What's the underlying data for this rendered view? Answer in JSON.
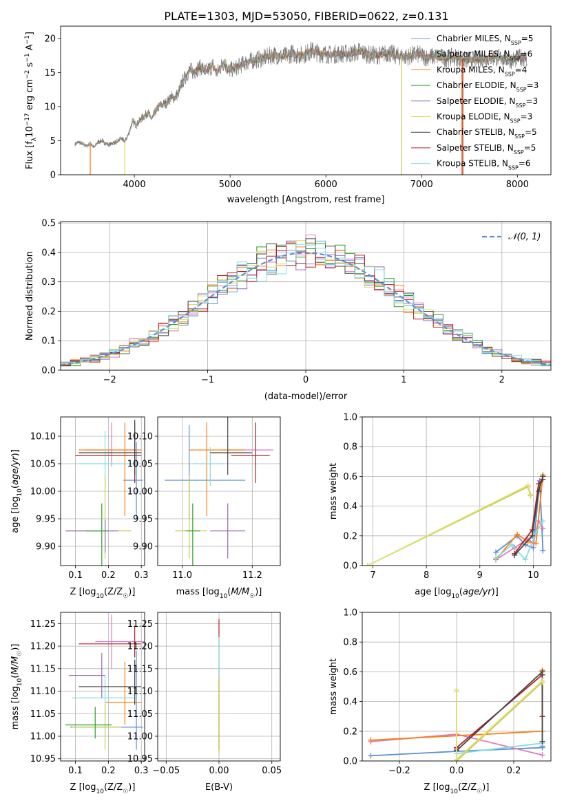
{
  "figure_title": "PLATE=1303, MJD=53050, FIBERID=0622, z=0.131",
  "chart_data": [
    {
      "id": "spectrum",
      "type": "line",
      "title": "PLATE=1303, MJD=53050, FIBERID=0622, z=0.131",
      "xlabel": "wavelength [Angstrom, rest frame]",
      "ylabel": "Flux [f_λ 10^-17 erg cm^-2 s^-1 A^-1]",
      "xlim": [
        3230,
        8350
      ],
      "ylim": [
        0,
        21.8
      ],
      "xticks": [
        4000,
        5000,
        6000,
        7000,
        8000
      ],
      "yticks": [
        0,
        5,
        10,
        15,
        20
      ],
      "grid": false,
      "legend_position": "upper right",
      "data_flux": {
        "x": [
          3380,
          3420,
          3460,
          3500,
          3540,
          3580,
          3620,
          3660,
          3700,
          3740,
          3780,
          3820,
          3860,
          3900,
          3940,
          3980,
          4020,
          4060,
          4100,
          4140,
          4180,
          4220,
          4260,
          4300,
          4340,
          4380,
          4420,
          4460,
          4500,
          4540,
          4580,
          4620,
          4660,
          4700,
          4740,
          4780,
          4820,
          4860,
          4900,
          4940,
          4980,
          5050,
          5150,
          5250,
          5350,
          5450,
          5550,
          5650,
          5750,
          5850,
          5950,
          6050,
          6150,
          6250,
          6350,
          6450,
          6550,
          6650,
          6750,
          6850,
          6950,
          7050,
          7150,
          7250,
          7350,
          7450,
          7550,
          7650,
          7750,
          7850,
          7950,
          8050,
          8100
        ],
        "y": [
          4.5,
          4.8,
          4.5,
          4.2,
          4.6,
          4.0,
          4.8,
          5.0,
          4.6,
          4.4,
          4.7,
          4.8,
          5.4,
          4.8,
          6.0,
          7.8,
          7.3,
          8.0,
          8.6,
          9.1,
          8.2,
          9.2,
          10.1,
          10.3,
          10.6,
          11.4,
          11.3,
          12.0,
          13.6,
          14.5,
          15.4,
          15.0,
          15.6,
          15.8,
          15.1,
          15.5,
          16.0,
          14.9,
          15.8,
          16.6,
          15.3,
          15.6,
          16.4,
          16.8,
          17.1,
          17.6,
          17.3,
          17.8,
          17.5,
          18.2,
          17.8,
          17.6,
          17.8,
          17.7,
          18.1,
          17.6,
          17.5,
          17.9,
          17.4,
          17.3,
          17.7,
          17.2,
          17.4,
          17.1,
          17.3,
          16.8,
          16.9,
          17.0,
          17.2,
          17.1,
          16.8,
          17.3,
          17.0
        ]
      },
      "series": [
        {
          "name": "Chabrier MILES, N_SSP=5",
          "color": "#5e9ed6"
        },
        {
          "name": "Salpeter MILES, N_SSP=6",
          "color": "#e377c2"
        },
        {
          "name": "Kroupa MILES, N_SSP=4",
          "color": "#ff7f0e"
        },
        {
          "name": "Chabrier ELODIE, N_SSP=3",
          "color": "#2ca02c"
        },
        {
          "name": "Salpeter ELODIE, N_SSP=3",
          "color": "#9467bd"
        },
        {
          "name": "Kroupa ELODIE, N_SSP=3",
          "color": "#dbdb5a"
        },
        {
          "name": "Chabrier STELIB, N_SSP=5",
          "color": "#444444"
        },
        {
          "name": "Salpeter STELIB, N_SSP=5",
          "color": "#b22222"
        },
        {
          "name": "Kroupa STELIB, N_SSP=6",
          "color": "#7fdfe0"
        }
      ],
      "legend_entries": [
        {
          "name": "Chabrier MILES, N",
          "sub": "SSP",
          "tail": "=5"
        },
        {
          "name": "Salpeter MILES, N",
          "sub": "SSP",
          "tail": "=6"
        },
        {
          "name": "Kroupa MILES, N",
          "sub": "SSP",
          "tail": "=4"
        },
        {
          "name": "Chabrier ELODIE, N",
          "sub": "SSP",
          "tail": "=3"
        },
        {
          "name": "Salpeter ELODIE, N",
          "sub": "SSP",
          "tail": "=3"
        },
        {
          "name": "Kroupa ELODIE, N",
          "sub": "SSP",
          "tail": "=3"
        },
        {
          "name": "Chabrier STELIB, N",
          "sub": "SSP",
          "tail": "=5"
        },
        {
          "name": "Salpeter STELIB, N",
          "sub": "SSP",
          "tail": "=5"
        },
        {
          "name": "Kroupa STELIB, N",
          "sub": "SSP",
          "tail": "=6"
        }
      ]
    },
    {
      "id": "residuals",
      "type": "line",
      "xlabel": "(data-model)/error",
      "ylabel": "Normed distribution",
      "xlim": [
        -2.5,
        2.5
      ],
      "ylim": [
        0,
        0.505
      ],
      "xticks": [
        -2,
        -1,
        0,
        1,
        2
      ],
      "yticks": [
        0.0,
        0.1,
        0.2,
        0.3,
        0.4,
        0.5
      ],
      "grid": true,
      "legend_position": "upper right",
      "legend_label": "𝒩(0, 1)",
      "gaussian": {
        "mean": 0,
        "sigma": 1,
        "color": "#5b8fd6"
      },
      "bin_width": 0.1,
      "series_colors": [
        "#5e9ed6",
        "#e377c2",
        "#ff7f0e",
        "#2ca02c",
        "#9467bd",
        "#dbdb5a",
        "#444444",
        "#b22222",
        "#7fdfe0"
      ]
    },
    {
      "id": "age_vs_z",
      "type": "scatter",
      "xlabel": "Z [log10(Z/Z☉)]",
      "ylabel": "age [log10(age/yr)]",
      "xlim": [
        0.055,
        0.31
      ],
      "ylim": [
        9.865,
        10.135
      ],
      "xticks": [
        0.1,
        0.2,
        0.3
      ],
      "yticks": [
        9.9,
        9.95,
        10.0,
        10.05,
        10.1
      ],
      "grid": true,
      "points": [
        {
          "x": 0.285,
          "y": 10.02,
          "xerr": [
            0.04,
            0.02
          ],
          "yerr": [
            0.07,
            0.07
          ],
          "color": "#5b8fd6"
        },
        {
          "x": 0.21,
          "y": 10.075,
          "xerr": [
            0.08,
            0.08
          ],
          "yerr": [
            0.03,
            0.05
          ],
          "color": "#e377c2"
        },
        {
          "x": 0.25,
          "y": 10.075,
          "xerr": [
            0.14,
            0.05
          ],
          "yerr": [
            0.12,
            0.05
          ],
          "color": "#ff7f0e"
        },
        {
          "x": 0.19,
          "y": 10.05,
          "xerr": [
            0.08,
            0.09
          ],
          "yerr": [
            0.04,
            0.06
          ],
          "color": "#7fdfe0"
        },
        {
          "x": 0.28,
          "y": 10.065,
          "xerr": [
            0.18,
            0.02
          ],
          "yerr": [
            0.05,
            0.06
          ],
          "color": "#b22222"
        },
        {
          "x": 0.28,
          "y": 10.07,
          "xerr": [
            0.17,
            0.02
          ],
          "yerr": [
            0.04,
            0.06
          ],
          "color": "#444444"
        },
        {
          "x": 0.19,
          "y": 9.928,
          "xerr": [
            0.12,
            0.08
          ],
          "yerr": [
            0.05,
            0.1
          ],
          "color": "#c9c94a"
        },
        {
          "x": 0.19,
          "y": 9.928,
          "xerr": [
            0.12,
            0.04
          ],
          "yerr": [
            0.04,
            0.02
          ],
          "color": "#9467bd"
        },
        {
          "x": 0.18,
          "y": 9.928,
          "xerr": [
            0.05,
            0.02
          ],
          "yerr": [
            0.1,
            0.05
          ],
          "color": "#2ca02c"
        }
      ]
    },
    {
      "id": "age_vs_mass",
      "type": "scatter",
      "xlabel": "mass [log10(M/M☉)]",
      "ylabel": "",
      "xlim": [
        10.93,
        11.28
      ],
      "ylim": [
        9.865,
        10.135
      ],
      "xticks": [
        11.0,
        11.2
      ],
      "yticks": [
        9.9,
        9.95,
        10.0,
        10.05,
        10.1
      ],
      "grid": true,
      "points": [
        {
          "x": 11.02,
          "y": 10.02,
          "xerr": [
            0.07,
            0.16
          ],
          "yerr": [
            0.07,
            0.1
          ],
          "color": "#5b8fd6"
        },
        {
          "x": 11.21,
          "y": 10.075,
          "xerr": [
            0.1,
            0.05
          ],
          "yerr": [
            0.03,
            0.05
          ],
          "color": "#e377c2"
        },
        {
          "x": 11.07,
          "y": 10.075,
          "xerr": [
            0.05,
            0.11
          ],
          "yerr": [
            0.12,
            0.05
          ],
          "color": "#ff7f0e"
        },
        {
          "x": 11.08,
          "y": 10.05,
          "xerr": [
            0.05,
            0.04
          ],
          "yerr": [
            0.04,
            0.03
          ],
          "color": "#7fdfe0"
        },
        {
          "x": 11.21,
          "y": 10.065,
          "xerr": [
            0.07,
            0.04
          ],
          "yerr": [
            0.05,
            0.06
          ],
          "color": "#b22222"
        },
        {
          "x": 11.13,
          "y": 10.07,
          "xerr": [
            0.05,
            0.07
          ],
          "yerr": [
            0.04,
            0.07
          ],
          "color": "#444444"
        },
        {
          "x": 11.02,
          "y": 9.928,
          "xerr": [
            0.04,
            0.05
          ],
          "yerr": [
            0.05,
            0.1
          ],
          "color": "#c9c94a"
        },
        {
          "x": 11.13,
          "y": 9.928,
          "xerr": [
            0.05,
            0.05
          ],
          "yerr": [
            0.05,
            0.05
          ],
          "color": "#9467bd"
        },
        {
          "x": 11.03,
          "y": 9.928,
          "xerr": [
            0.02,
            0.02
          ],
          "yerr": [
            0.1,
            0.05
          ],
          "color": "#2ca02c"
        }
      ]
    },
    {
      "id": "weight_vs_age",
      "type": "line",
      "xlabel": "age [log10(age/yr)]",
      "ylabel": "mass weight",
      "xlim": [
        6.8,
        10.33
      ],
      "ylim": [
        0,
        1.0
      ],
      "xticks": [
        7,
        8,
        9,
        10
      ],
      "yticks": [
        0.0,
        0.2,
        0.4,
        0.6,
        0.8,
        1.0
      ],
      "grid": true,
      "series": [
        {
          "color": "#5b8fd6",
          "x": [
            9.3,
            9.7,
            9.85,
            10.0,
            10.12,
            10.18
          ],
          "y": [
            0.09,
            0.2,
            0.14,
            0.12,
            0.57,
            0.1
          ]
        },
        {
          "color": "#e377c2",
          "x": [
            9.3,
            9.65,
            9.9,
            10.0,
            10.1,
            10.18
          ],
          "y": [
            0.04,
            0.12,
            0.18,
            0.15,
            0.3,
            0.25
          ]
        },
        {
          "color": "#ff7f0e",
          "x": [
            9.3,
            9.7,
            9.9,
            10.05,
            10.18
          ],
          "y": [
            0.04,
            0.21,
            0.16,
            0.15,
            0.61
          ]
        },
        {
          "color": "#7fdfe0",
          "x": [
            9.3,
            9.6,
            9.85,
            10.05,
            10.18
          ],
          "y": [
            0.05,
            0.14,
            0.04,
            0.22,
            0.3
          ]
        },
        {
          "color": "#b22222",
          "x": [
            9.65,
            9.98,
            10.1,
            10.18
          ],
          "y": [
            0.08,
            0.24,
            0.55,
            0.58
          ]
        },
        {
          "color": "#444444",
          "x": [
            9.65,
            9.98,
            10.1,
            10.18
          ],
          "y": [
            0.07,
            0.2,
            0.5,
            0.6
          ]
        },
        {
          "color": "#c9c94a",
          "x": [
            6.9,
            9.9,
            9.95
          ],
          "y": [
            0.0,
            0.53,
            0.47
          ]
        },
        {
          "color": "#e0e07a",
          "x": [
            6.9,
            9.9,
            9.95
          ],
          "y": [
            0.0,
            0.54,
            0.48
          ]
        }
      ]
    },
    {
      "id": "mass_vs_z",
      "type": "scatter",
      "xlabel": "Z [log10(Z/Z☉)]",
      "ylabel": "mass [log10(M/M☉)]",
      "xlim": [
        0.055,
        0.31
      ],
      "ylim": [
        10.945,
        11.275
      ],
      "xticks": [
        0.1,
        0.2,
        0.3
      ],
      "yticks": [
        10.95,
        11.0,
        11.05,
        11.1,
        11.15,
        11.2,
        11.25
      ],
      "grid": true,
      "points": [
        {
          "x": 0.285,
          "y": 11.02,
          "xerr": [
            0.2,
            0.02
          ],
          "yerr": [
            0.05,
            0.17
          ],
          "color": "#5b8fd6"
        },
        {
          "x": 0.21,
          "y": 11.21,
          "xerr": [
            0.05,
            0.1
          ],
          "yerr": [
            0.06,
            0.06
          ],
          "color": "#e377c2"
        },
        {
          "x": 0.25,
          "y": 11.075,
          "xerr": [
            0.06,
            0.05
          ],
          "yerr": [
            0.05,
            0.09
          ],
          "color": "#ff7f0e"
        },
        {
          "x": 0.19,
          "y": 11.085,
          "xerr": [
            0.1,
            0.09
          ],
          "yerr": [
            0.04,
            0.05
          ],
          "color": "#7fdfe0"
        },
        {
          "x": 0.28,
          "y": 11.205,
          "xerr": [
            0.17,
            0.02
          ],
          "yerr": [
            0.03,
            0.04
          ],
          "color": "#b22222"
        },
        {
          "x": 0.28,
          "y": 11.11,
          "xerr": [
            0.17,
            0.02
          ],
          "yerr": [
            0.04,
            0.06
          ],
          "color": "#444444"
        },
        {
          "x": 0.19,
          "y": 11.02,
          "xerr": [
            0.1,
            0.05
          ],
          "yerr": [
            0.05,
            0.05
          ],
          "color": "#c9c94a"
        },
        {
          "x": 0.18,
          "y": 11.135,
          "xerr": [
            0.1,
            0.01
          ],
          "yerr": [
            0.05,
            0.05
          ],
          "color": "#9467bd"
        },
        {
          "x": 0.16,
          "y": 11.025,
          "xerr": [
            0.09,
            0.05
          ],
          "yerr": [
            0.03,
            0.04
          ],
          "color": "#2ca02c"
        }
      ]
    },
    {
      "id": "mass_vs_ebv",
      "type": "scatter",
      "xlabel": "E(B-V)",
      "ylabel": "",
      "xlim": [
        -0.058,
        0.058
      ],
      "ylim": [
        10.945,
        11.275
      ],
      "xticks": [
        -0.05,
        0.0,
        0.05
      ],
      "xticklabels": [
        "−0.05",
        "0.00",
        "0.05"
      ],
      "yticks": [
        10.95,
        11.0,
        11.05,
        11.1,
        11.15,
        11.2,
        11.25
      ],
      "grid": true,
      "points": [
        {
          "x": 0.0,
          "y": 11.1,
          "yerr": [
            0.13,
            0.16
          ],
          "color": "#b22222"
        },
        {
          "x": 0.0,
          "y": 11.1,
          "yerr": [
            0.13,
            0.12
          ],
          "color": "#7fdfe0"
        },
        {
          "x": 0.0,
          "y": 11.05,
          "yerr": [
            0.09,
            0.08
          ],
          "color": "#c9c94a"
        }
      ]
    },
    {
      "id": "weight_vs_z",
      "type": "line",
      "xlabel": "Z [log10(Z/Z☉)]",
      "ylabel": "mass weight",
      "xlim": [
        -0.33,
        0.33
      ],
      "ylim": [
        0,
        1.0
      ],
      "xticks": [
        -0.2,
        0.0,
        0.2
      ],
      "xticklabels": [
        "−0.2",
        "0.0",
        "0.2"
      ],
      "yticks": [
        0.0,
        0.2,
        0.4,
        0.6,
        0.8,
        1.0
      ],
      "grid": true,
      "series": [
        {
          "color": "#5b8fd6",
          "x": [
            -0.3,
            0.0,
            0.3,
            0.3
          ],
          "y": [
            0.035,
            0.065,
            0.09,
            0.1
          ]
        },
        {
          "color": "#e377c2",
          "x": [
            -0.3,
            0.0,
            0.3
          ],
          "y": [
            0.13,
            0.18,
            0.04
          ]
        },
        {
          "color": "#ff7f0e",
          "x": [
            -0.3,
            0.0,
            0.3,
            0.3
          ],
          "y": [
            0.14,
            0.17,
            0.2,
            0.61
          ]
        },
        {
          "color": "#7fdfe0",
          "x": [
            0.0,
            0.3,
            0.3
          ],
          "y": [
            0.05,
            0.12,
            0.3
          ]
        },
        {
          "color": "#b22222",
          "x": [
            0.0,
            0.0,
            0.3,
            0.3
          ],
          "y": [
            0.08,
            0.09,
            0.58,
            0.3
          ]
        },
        {
          "color": "#444444",
          "x": [
            0.0,
            0.3,
            0.3
          ],
          "y": [
            0.07,
            0.6,
            0.13
          ]
        },
        {
          "color": "#c9c94a",
          "x": [
            0.0,
            0.0,
            0.3
          ],
          "y": [
            0.47,
            0.0,
            0.53
          ]
        },
        {
          "color": "#e0e07a",
          "x": [
            0.0,
            0.0,
            0.3
          ],
          "y": [
            0.48,
            0.01,
            0.54
          ]
        }
      ]
    }
  ]
}
